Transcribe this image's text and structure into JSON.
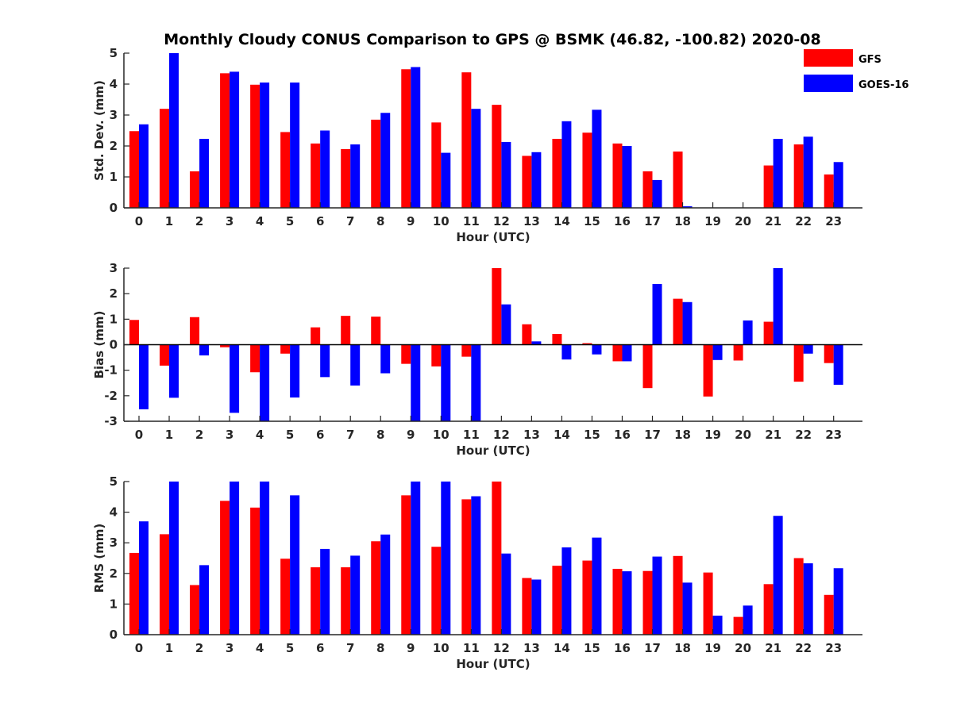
{
  "figure_title": "Monthly Cloudy CONUS Comparison to GPS @ BSMK (46.82, -100.82) 2020-08",
  "legend": [
    {
      "name": "GFS",
      "color": "#ff0000"
    },
    {
      "name": "GOES-16",
      "color": "#0000ff"
    }
  ],
  "chart_data": [
    {
      "type": "bar",
      "ylabel": "Std. Dev. (mm)",
      "xlabel": "Hour (UTC)",
      "categories": [
        "0",
        "1",
        "2",
        "3",
        "4",
        "5",
        "6",
        "7",
        "8",
        "9",
        "10",
        "11",
        "12",
        "13",
        "14",
        "15",
        "16",
        "17",
        "18",
        "19",
        "20",
        "21",
        "22",
        "23"
      ],
      "ylim": [
        0,
        5
      ],
      "yticks": [
        0,
        1,
        2,
        3,
        4,
        5
      ],
      "series": [
        {
          "name": "GFS",
          "color": "#ff0000",
          "values": [
            2.48,
            3.2,
            1.18,
            4.35,
            3.98,
            2.45,
            2.08,
            1.9,
            2.85,
            4.48,
            2.76,
            4.38,
            3.33,
            1.68,
            2.23,
            2.43,
            2.08,
            1.18,
            1.82,
            0,
            0,
            1.37,
            2.05,
            1.08
          ]
        },
        {
          "name": "GOES-16",
          "color": "#0000ff",
          "values": [
            2.7,
            5.0,
            2.23,
            4.4,
            4.05,
            4.05,
            2.5,
            2.05,
            3.07,
            4.55,
            1.78,
            3.2,
            2.13,
            1.8,
            2.8,
            3.17,
            2.0,
            0.9,
            0.05,
            0,
            0,
            2.23,
            2.3,
            1.48
          ]
        }
      ]
    },
    {
      "type": "bar",
      "ylabel": "Bias (mm)",
      "xlabel": "Hour (UTC)",
      "categories": [
        "0",
        "1",
        "2",
        "3",
        "4",
        "5",
        "6",
        "7",
        "8",
        "9",
        "10",
        "11",
        "12",
        "13",
        "14",
        "15",
        "16",
        "17",
        "18",
        "19",
        "20",
        "21",
        "22",
        "23"
      ],
      "ylim": [
        -3,
        3
      ],
      "yticks": [
        -3,
        -2,
        -1,
        0,
        1,
        2,
        3
      ],
      "zero_line": true,
      "series": [
        {
          "name": "GFS",
          "color": "#ff0000",
          "values": [
            0.97,
            -0.82,
            1.08,
            -0.1,
            -1.08,
            -0.35,
            0.68,
            1.13,
            1.1,
            -0.75,
            -0.85,
            -0.47,
            3.0,
            0.8,
            0.42,
            0.06,
            -0.65,
            -1.7,
            1.8,
            -2.03,
            -0.62,
            0.9,
            -1.45,
            -0.72
          ]
        },
        {
          "name": "GOES-16",
          "color": "#0000ff",
          "values": [
            -2.53,
            -2.08,
            -0.42,
            -2.67,
            -3.0,
            -2.07,
            -1.27,
            -1.6,
            -1.12,
            -3.0,
            -3.0,
            -3.0,
            1.58,
            0.13,
            -0.58,
            -0.38,
            -0.65,
            2.38,
            1.67,
            -0.6,
            0.95,
            3.0,
            -0.35,
            -1.57
          ]
        }
      ]
    },
    {
      "type": "bar",
      "ylabel": "RMS (mm)",
      "xlabel": "Hour (UTC)",
      "categories": [
        "0",
        "1",
        "2",
        "3",
        "4",
        "5",
        "6",
        "7",
        "8",
        "9",
        "10",
        "11",
        "12",
        "13",
        "14",
        "15",
        "16",
        "17",
        "18",
        "19",
        "20",
        "21",
        "22",
        "23"
      ],
      "ylim": [
        0,
        5
      ],
      "yticks": [
        0,
        1,
        2,
        3,
        4,
        5
      ],
      "series": [
        {
          "name": "GFS",
          "color": "#ff0000",
          "values": [
            2.67,
            3.28,
            1.62,
            4.37,
            4.15,
            2.48,
            2.2,
            2.2,
            3.05,
            4.55,
            2.87,
            4.42,
            5.0,
            1.85,
            2.25,
            2.42,
            2.15,
            2.08,
            2.57,
            2.03,
            0.58,
            1.65,
            2.5,
            1.3
          ]
        },
        {
          "name": "GOES-16",
          "color": "#0000ff",
          "values": [
            3.7,
            5.0,
            2.27,
            5.0,
            5.0,
            4.55,
            2.8,
            2.58,
            3.27,
            5.0,
            5.0,
            4.52,
            2.65,
            1.8,
            2.85,
            3.17,
            2.07,
            2.55,
            1.7,
            0.62,
            0.95,
            3.88,
            2.33,
            2.17
          ]
        }
      ]
    }
  ]
}
